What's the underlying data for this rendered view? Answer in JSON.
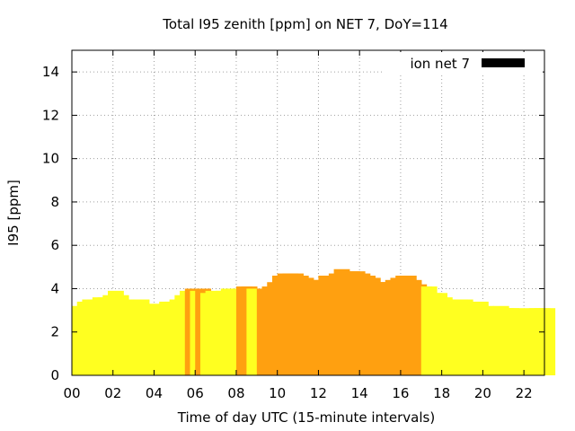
{
  "chart_data": {
    "type": "bar",
    "title": "Total I95 zenith [ppm] on NET 7, DoY=114",
    "xlabel": "Time of day UTC (15-minute intervals)",
    "ylabel": "I95 [ppm]",
    "ylim": [
      0,
      15
    ],
    "xlim": [
      0,
      22.75
    ],
    "yticks": [
      0,
      2,
      4,
      6,
      8,
      10,
      12,
      14
    ],
    "xticks": [
      0,
      2,
      4,
      6,
      8,
      10,
      12,
      14,
      16,
      18,
      20,
      22
    ],
    "xtick_labels": [
      "00",
      "02",
      "04",
      "06",
      "08",
      "10",
      "12",
      "14",
      "16",
      "18",
      "20",
      "22"
    ],
    "grid": true,
    "legend_position": "top-right",
    "legend_label": "ion net 7",
    "colors": {
      "low": "#ffff20",
      "high": "#ffa010",
      "legend": "#000000",
      "axis": "#000000",
      "grid": "#a0a0a0"
    },
    "series": [
      {
        "name": "ion net 7",
        "x": [
          0.0,
          0.25,
          0.5,
          0.75,
          1.0,
          1.25,
          1.5,
          1.75,
          2.0,
          2.25,
          2.5,
          2.75,
          3.0,
          3.25,
          3.5,
          3.75,
          4.0,
          4.25,
          4.5,
          4.75,
          5.0,
          5.25,
          5.5,
          5.75,
          6.0,
          6.25,
          6.5,
          6.75,
          7.0,
          7.25,
          7.5,
          7.75,
          8.0,
          8.25,
          8.5,
          8.75,
          9.0,
          9.25,
          9.5,
          9.75,
          10.0,
          10.25,
          10.5,
          10.75,
          11.0,
          11.25,
          11.5,
          11.75,
          12.0,
          12.25,
          12.5,
          12.75,
          13.0,
          13.25,
          13.5,
          13.75,
          14.0,
          14.25,
          14.5,
          14.75,
          15.0,
          15.25,
          15.5,
          15.75,
          16.0,
          16.25,
          16.5,
          16.75,
          17.0,
          17.25,
          17.5,
          17.75,
          18.0,
          18.25,
          18.5,
          18.75,
          19.0,
          19.25,
          19.5,
          19.75,
          20.0,
          20.25,
          20.5,
          20.75,
          21.0,
          21.25,
          21.5,
          21.75,
          22.0,
          22.25,
          22.5,
          22.75
        ],
        "values": [
          3.2,
          3.4,
          3.5,
          3.5,
          3.6,
          3.6,
          3.7,
          3.9,
          3.7,
          3.5,
          3.4,
          3.4,
          3.5,
          3.3,
          3.1,
          3.3,
          3.3,
          3.4,
          3.4,
          3.5,
          3.7,
          3.9,
          4.0,
          3.9,
          4.0,
          3.8,
          3.9,
          3.7,
          3.9,
          4.0,
          4.0,
          4.0,
          4.1,
          4.1,
          4.0,
          4.0,
          4.0,
          4.1,
          4.3,
          4.6,
          4.7,
          4.7,
          4.7,
          4.6,
          4.5,
          4.4,
          4.4,
          4.3,
          4.6,
          4.6,
          4.7,
          4.9,
          4.7,
          4.8,
          4.8,
          4.7,
          4.6,
          4.5,
          4.3,
          4.3,
          4.3,
          4.4,
          4.5,
          4.6,
          4.6,
          4.4,
          4.2,
          4.1,
          4.1,
          3.8,
          3.8,
          3.6,
          3.5,
          3.5,
          3.5,
          3.5,
          3.2,
          3.3,
          3.4,
          3.2,
          3.1,
          3.1,
          3.2,
          3.1,
          3.1,
          3.1,
          3.0,
          3.0,
          3.1,
          3.1,
          3.1,
          3.1
        ],
        "highlight": [
          0,
          0,
          0,
          0,
          0,
          0,
          0,
          0,
          0,
          0,
          0,
          0,
          0,
          0,
          0,
          0,
          0,
          0,
          0,
          0,
          0,
          0,
          1,
          0,
          1,
          0,
          0,
          0,
          0,
          0,
          0,
          0,
          1,
          1,
          0,
          0,
          1,
          1,
          1,
          1,
          1,
          1,
          1,
          1,
          1,
          1,
          1,
          1,
          1,
          1,
          1,
          1,
          1,
          1,
          1,
          1,
          1,
          1,
          1,
          1,
          1,
          1,
          1,
          1,
          1,
          1,
          1,
          1,
          0,
          0,
          0,
          0,
          0,
          0,
          0,
          0,
          0,
          0,
          0,
          0,
          0,
          0,
          0,
          0,
          0,
          0,
          0,
          0,
          0,
          0,
          0,
          0
        ]
      }
    ]
  }
}
